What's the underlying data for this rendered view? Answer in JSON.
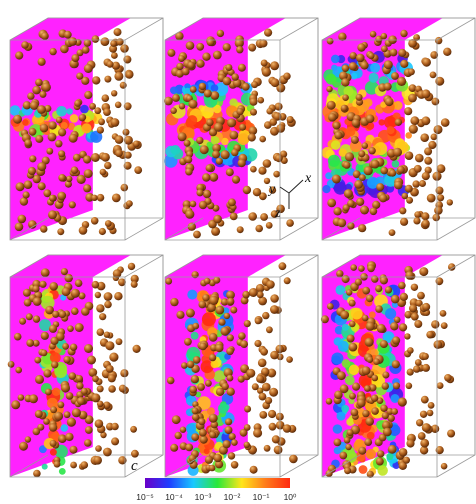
{
  "figure": {
    "panel_count": 6,
    "colorbar": {
      "symbol": "c",
      "ticks": [
        "10⁻⁵",
        "10⁻⁴",
        "10⁻³",
        "10⁻²",
        "10⁻¹",
        "10⁰"
      ],
      "stops": [
        "#6a00c8",
        "#1f3dff",
        "#19c8ff",
        "#2ae83a",
        "#ffe51a",
        "#ff7a1a",
        "#ff2a10"
      ]
    },
    "axes_triad": {
      "x": "x",
      "y": "y",
      "z": "z"
    },
    "colors": {
      "particle": "#a8561a",
      "particle_highlight": "#e9a55a",
      "background_fill": "#ff22ff",
      "box_edge": "#9a9a9a"
    },
    "panels": [
      {
        "id": "top-1",
        "spread": 0.1,
        "path": "band"
      },
      {
        "id": "top-2",
        "spread": 0.45,
        "path": "band"
      },
      {
        "id": "top-3",
        "spread": 0.85,
        "path": "band"
      },
      {
        "id": "bottom-1",
        "spread": 0.15,
        "path": "column"
      },
      {
        "id": "bottom-2",
        "spread": 0.45,
        "path": "column"
      },
      {
        "id": "bottom-3",
        "spread": 0.8,
        "path": "column"
      }
    ]
  }
}
